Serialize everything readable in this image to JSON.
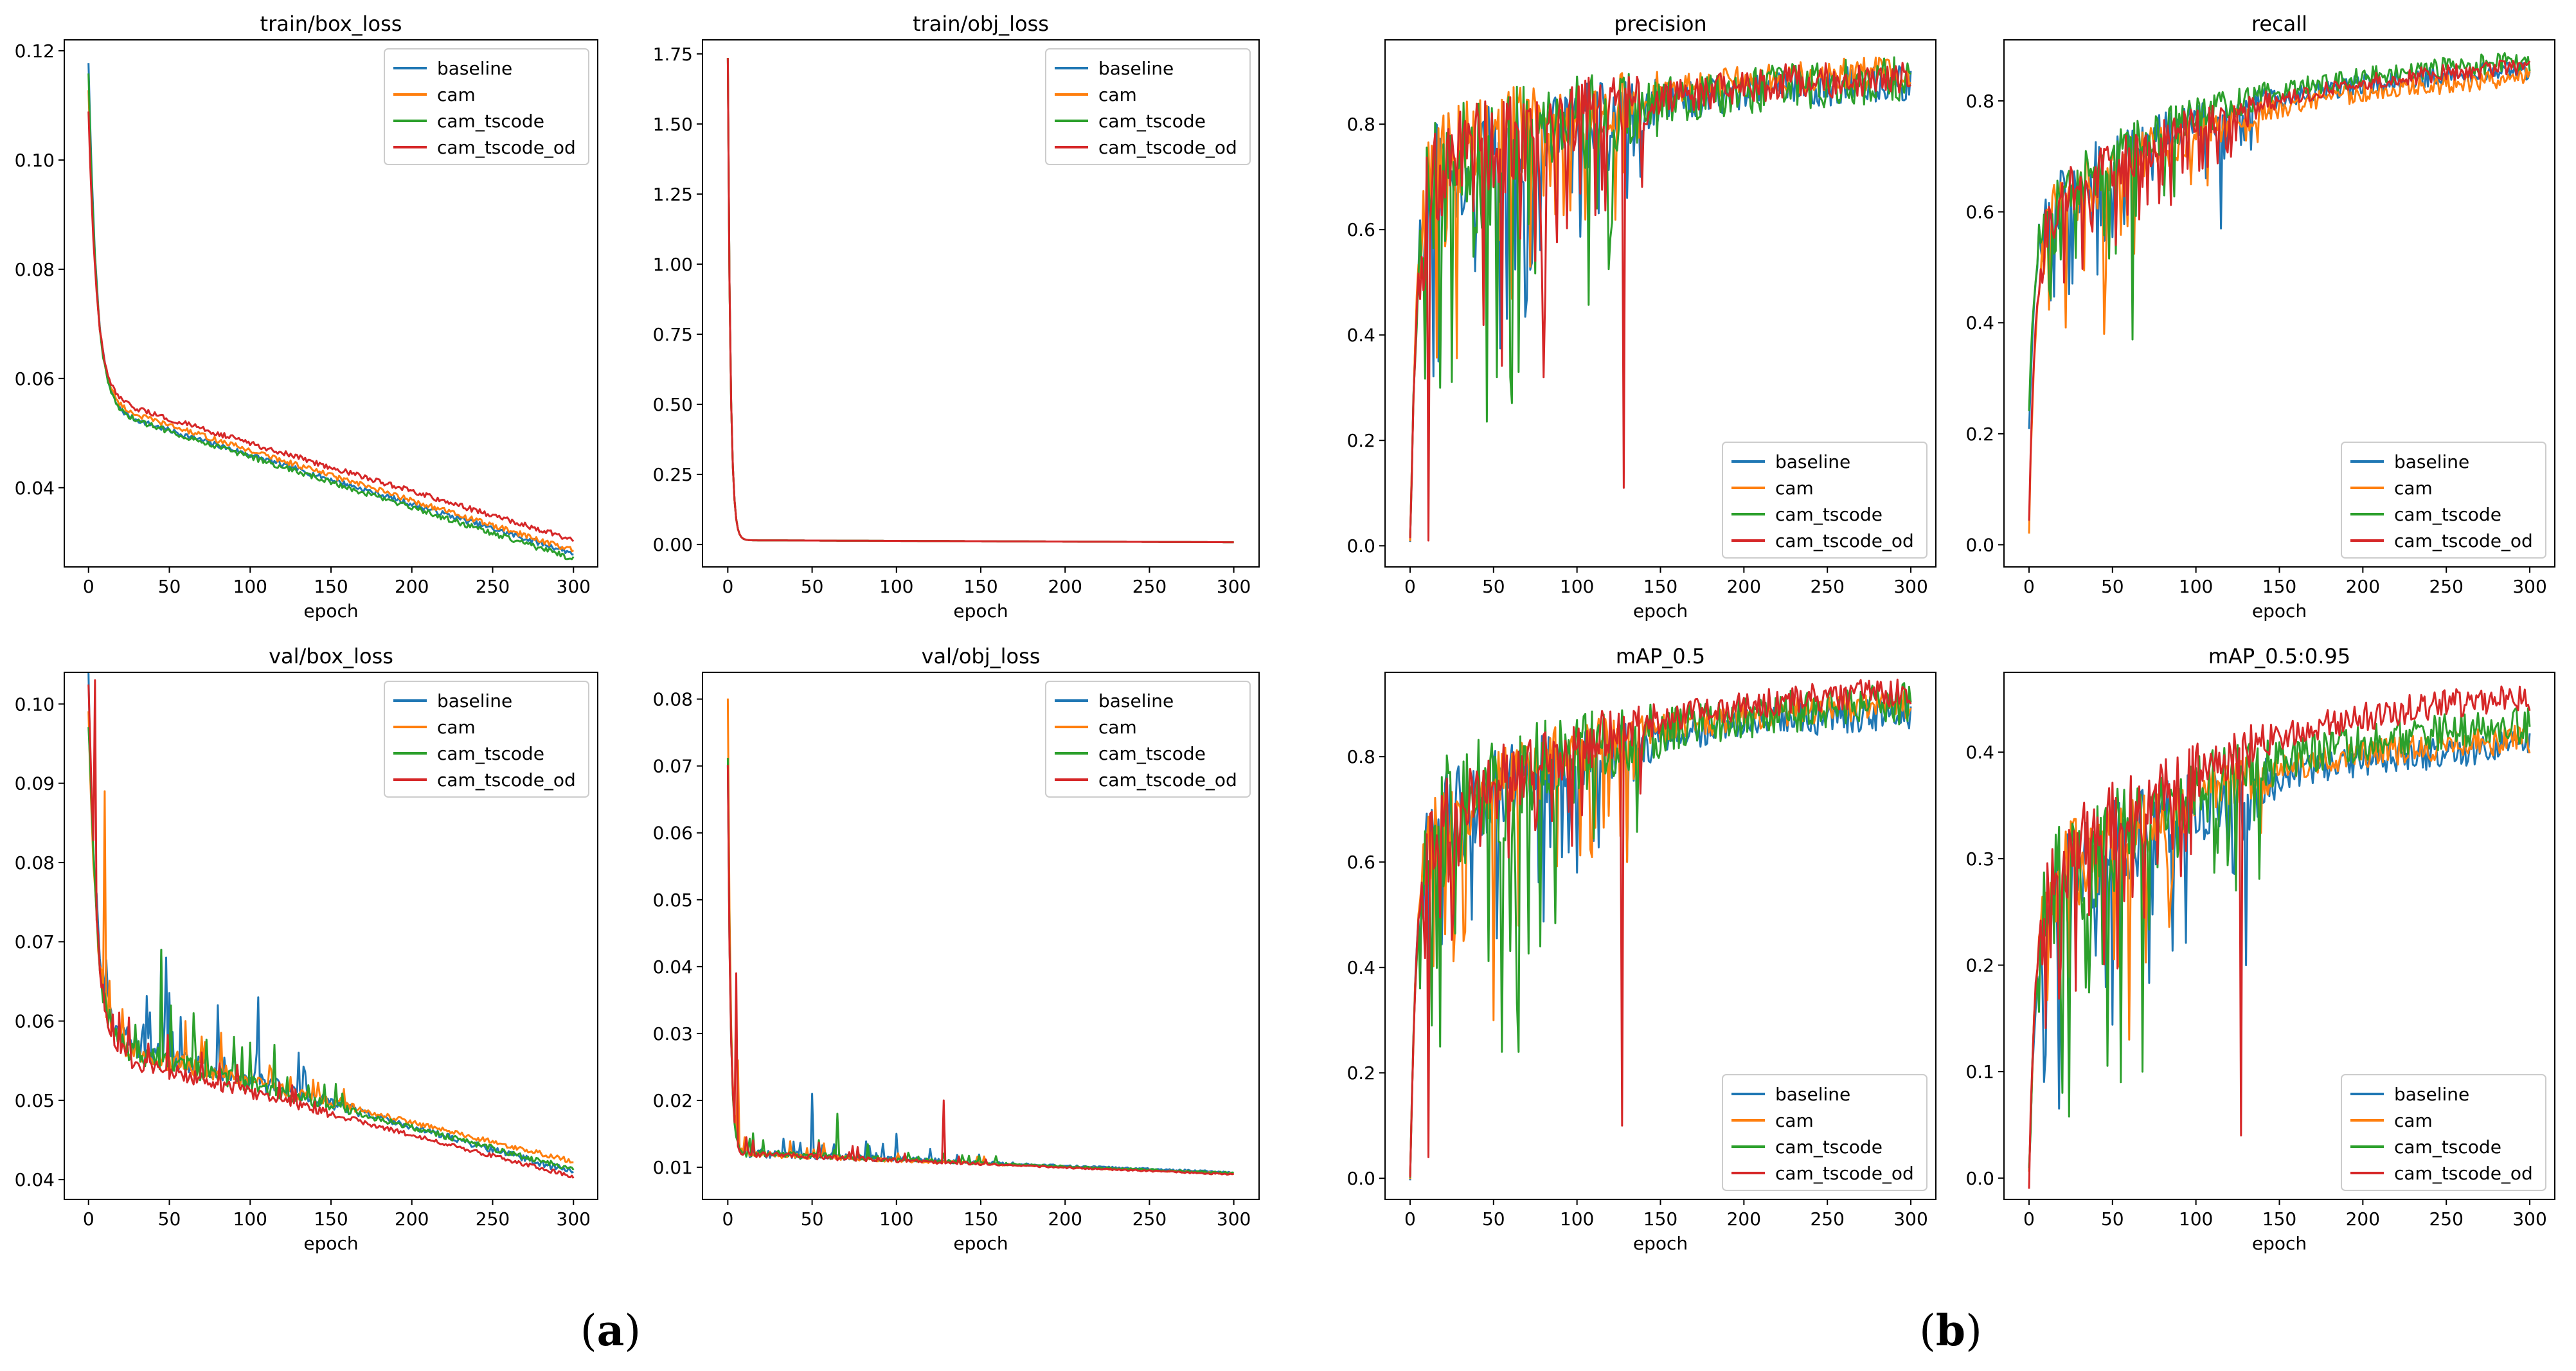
{
  "panel_labels": {
    "a": {
      "open": "(",
      "letter": "a",
      "close": ")"
    },
    "b": {
      "open": "(",
      "letter": "b",
      "close": ")"
    }
  },
  "colors": {
    "baseline": "#1f77b4",
    "cam": "#ff7f0e",
    "cam_tscode": "#2ca02c",
    "cam_tscode_od": "#d62728"
  },
  "chart_data": [
    {
      "id": "train-box-loss",
      "panel": "a",
      "type": "line",
      "title": "train/box_loss",
      "xlabel": "epoch",
      "ylabel": "",
      "xlim": [
        -15,
        315
      ],
      "ylim": [
        0.0255,
        0.122
      ],
      "xticks": [
        0,
        50,
        100,
        150,
        200,
        250,
        300
      ],
      "xtick_labels": [
        "0",
        "50",
        "100",
        "150",
        "200",
        "250",
        "300"
      ],
      "yticks": [
        0.04,
        0.06,
        0.08,
        0.1,
        0.12
      ],
      "ytick_labels": [
        "0.04",
        "0.06",
        "0.08",
        "0.10",
        "0.12"
      ],
      "legend": "top-right",
      "style": "decay",
      "series": [
        {
          "name": "baseline",
          "key": "baseline",
          "start": 0.118,
          "plateau": 0.055,
          "end": 0.028,
          "noise": 0.0005
        },
        {
          "name": "cam",
          "key": "cam",
          "start": 0.113,
          "plateau": 0.056,
          "end": 0.0285,
          "noise": 0.0005
        },
        {
          "name": "cam_tscode",
          "key": "cam_tscode",
          "start": 0.116,
          "plateau": 0.055,
          "end": 0.027,
          "noise": 0.0005
        },
        {
          "name": "cam_tscode_od",
          "key": "cam_tscode_od",
          "start": 0.109,
          "plateau": 0.057,
          "end": 0.0305,
          "noise": 0.0005
        }
      ]
    },
    {
      "id": "train-obj-loss",
      "panel": "a",
      "type": "line",
      "title": "train/obj_loss",
      "xlabel": "epoch",
      "ylabel": "",
      "xlim": [
        -15,
        315
      ],
      "ylim": [
        -0.08,
        1.8
      ],
      "xticks": [
        0,
        50,
        100,
        150,
        200,
        250,
        300
      ],
      "xtick_labels": [
        "0",
        "50",
        "100",
        "150",
        "200",
        "250",
        "300"
      ],
      "yticks": [
        0.0,
        0.25,
        0.5,
        0.75,
        1.0,
        1.25,
        1.5,
        1.75
      ],
      "ytick_labels": [
        "0.00",
        "0.25",
        "0.50",
        "0.75",
        "1.00",
        "1.25",
        "1.50",
        "1.75"
      ],
      "legend": "top-right",
      "style": "spike",
      "series": [
        {
          "name": "baseline",
          "key": "baseline",
          "start": 1.74,
          "plateau": 0.02,
          "end": 0.008,
          "noise": 0
        },
        {
          "name": "cam",
          "key": "cam",
          "start": 1.74,
          "plateau": 0.02,
          "end": 0.008,
          "noise": 0
        },
        {
          "name": "cam_tscode",
          "key": "cam_tscode",
          "start": 1.74,
          "plateau": 0.02,
          "end": 0.008,
          "noise": 0
        },
        {
          "name": "cam_tscode_od",
          "key": "cam_tscode_od",
          "start": 1.74,
          "plateau": 0.02,
          "end": 0.008,
          "noise": 0
        }
      ]
    },
    {
      "id": "val-box-loss",
      "panel": "a",
      "type": "line",
      "title": "val/box_loss",
      "xlabel": "epoch",
      "ylabel": "",
      "xlim": [
        -15,
        315
      ],
      "ylim": [
        0.0375,
        0.104
      ],
      "xticks": [
        0,
        50,
        100,
        150,
        200,
        250,
        300
      ],
      "xtick_labels": [
        "0",
        "50",
        "100",
        "150",
        "200",
        "250",
        "300"
      ],
      "yticks": [
        0.04,
        0.05,
        0.06,
        0.07,
        0.08,
        0.09,
        0.1
      ],
      "ytick_labels": [
        "0.04",
        "0.05",
        "0.06",
        "0.07",
        "0.08",
        "0.09",
        "0.10"
      ],
      "legend": "top-right",
      "style": "noisy-decay",
      "series": [
        {
          "name": "baseline",
          "key": "baseline",
          "start": 0.102,
          "plateau": 0.058,
          "end": 0.0408,
          "noise": 0.0035,
          "spikes": [
            [
              45,
              0.069
            ],
            [
              48,
              0.068
            ],
            [
              80,
              0.062
            ],
            [
              105,
              0.063
            ],
            [
              130,
              0.056
            ]
          ]
        },
        {
          "name": "cam",
          "key": "cam",
          "start": 0.1,
          "plateau": 0.057,
          "end": 0.0422,
          "noise": 0.0025,
          "spikes": [
            [
              10,
              0.089
            ],
            [
              60,
              0.06
            ],
            [
              95,
              0.055
            ]
          ]
        },
        {
          "name": "cam_tscode",
          "key": "cam_tscode",
          "start": 0.098,
          "plateau": 0.057,
          "end": 0.0412,
          "noise": 0.003,
          "spikes": [
            [
              45,
              0.069
            ],
            [
              65,
              0.061
            ],
            [
              90,
              0.058
            ],
            [
              115,
              0.057
            ]
          ]
        },
        {
          "name": "cam_tscode_od",
          "key": "cam_tscode_od",
          "start": 0.103,
          "plateau": 0.056,
          "end": 0.0403,
          "noise": 0.0022,
          "spikes": [
            [
              4,
              0.103
            ]
          ]
        }
      ]
    },
    {
      "id": "val-obj-loss",
      "panel": "a",
      "type": "line",
      "title": "val/obj_loss",
      "xlabel": "epoch",
      "ylabel": "",
      "xlim": [
        -15,
        315
      ],
      "ylim": [
        0.0052,
        0.084
      ],
      "xticks": [
        0,
        50,
        100,
        150,
        200,
        250,
        300
      ],
      "xtick_labels": [
        "0",
        "50",
        "100",
        "150",
        "200",
        "250",
        "300"
      ],
      "yticks": [
        0.01,
        0.02,
        0.03,
        0.04,
        0.05,
        0.06,
        0.07,
        0.08
      ],
      "ytick_labels": [
        "0.01",
        "0.02",
        "0.03",
        "0.04",
        "0.05",
        "0.06",
        "0.07",
        "0.08"
      ],
      "legend": "top-right",
      "style": "noisy-spike",
      "series": [
        {
          "name": "baseline",
          "key": "baseline",
          "start": 0.072,
          "plateau": 0.014,
          "end": 0.0092,
          "noise": 0.0012,
          "spikes": [
            [
              50,
              0.021
            ],
            [
              100,
              0.015
            ]
          ]
        },
        {
          "name": "cam",
          "key": "cam",
          "start": 0.082,
          "plateau": 0.014,
          "end": 0.009,
          "noise": 0.0009,
          "spikes": [
            [
              6,
              0.026
            ]
          ]
        },
        {
          "name": "cam_tscode",
          "key": "cam_tscode",
          "start": 0.073,
          "plateau": 0.014,
          "end": 0.0091,
          "noise": 0.0011,
          "spikes": [
            [
              65,
              0.018
            ]
          ]
        },
        {
          "name": "cam_tscode_od",
          "key": "cam_tscode_od",
          "start": 0.072,
          "plateau": 0.014,
          "end": 0.0089,
          "noise": 0.0009,
          "spikes": [
            [
              5,
              0.039
            ],
            [
              128,
              0.02
            ]
          ]
        }
      ]
    },
    {
      "id": "precision",
      "panel": "b",
      "type": "line",
      "title": "precision",
      "xlabel": "epoch",
      "ylabel": "",
      "xlim": [
        -15,
        315
      ],
      "ylim": [
        -0.04,
        0.96
      ],
      "xticks": [
        0,
        50,
        100,
        150,
        200,
        250,
        300
      ],
      "xtick_labels": [
        "0",
        "50",
        "100",
        "150",
        "200",
        "250",
        "300"
      ],
      "yticks": [
        0.0,
        0.2,
        0.4,
        0.6,
        0.8
      ],
      "ytick_labels": [
        "0.0",
        "0.2",
        "0.4",
        "0.6",
        "0.8"
      ],
      "legend": "bottom-right",
      "style": "rise",
      "series": [
        {
          "name": "baseline",
          "key": "baseline",
          "start": 0.0,
          "plateau": 0.7,
          "end": 0.885,
          "noise": 0.08,
          "spikes": [
            [
              130,
              0.66
            ]
          ]
        },
        {
          "name": "cam",
          "key": "cam",
          "start": 0.0,
          "plateau": 0.72,
          "end": 0.905,
          "noise": 0.07
        },
        {
          "name": "cam_tscode",
          "key": "cam_tscode",
          "start": 0.0,
          "plateau": 0.68,
          "end": 0.895,
          "noise": 0.1,
          "spikes": [
            [
              18,
              0.3
            ],
            [
              52,
              0.32
            ],
            [
              60,
              0.32
            ],
            [
              65,
              0.33
            ]
          ]
        },
        {
          "name": "cam_tscode_od",
          "key": "cam_tscode_od",
          "start": 0.0,
          "plateau": 0.7,
          "end": 0.9,
          "noise": 0.08,
          "spikes": [
            [
              11,
              0.01
            ],
            [
              80,
              0.32
            ],
            [
              128,
              0.11
            ]
          ]
        }
      ]
    },
    {
      "id": "recall",
      "panel": "b",
      "type": "line",
      "title": "recall",
      "xlabel": "epoch",
      "ylabel": "",
      "xlim": [
        -15,
        315
      ],
      "ylim": [
        -0.04,
        0.91
      ],
      "xticks": [
        0,
        50,
        100,
        150,
        200,
        250,
        300
      ],
      "xtick_labels": [
        "0",
        "50",
        "100",
        "150",
        "200",
        "250",
        "300"
      ],
      "yticks": [
        0.0,
        0.2,
        0.4,
        0.6,
        0.8
      ],
      "ytick_labels": [
        "0.0",
        "0.2",
        "0.4",
        "0.6",
        "0.8"
      ],
      "legend": "bottom-right",
      "style": "rise",
      "series": [
        {
          "name": "baseline",
          "key": "baseline",
          "start": 0.22,
          "plateau": 0.6,
          "end": 0.86,
          "noise": 0.04,
          "spikes": [
            [
              115,
              0.57
            ]
          ]
        },
        {
          "name": "cam",
          "key": "cam",
          "start": 0.03,
          "plateau": 0.58,
          "end": 0.845,
          "noise": 0.04,
          "spikes": [
            [
              45,
              0.38
            ]
          ]
        },
        {
          "name": "cam_tscode",
          "key": "cam_tscode",
          "start": 0.25,
          "plateau": 0.6,
          "end": 0.875,
          "noise": 0.04,
          "spikes": [
            [
              62,
              0.37
            ]
          ]
        },
        {
          "name": "cam_tscode_od",
          "key": "cam_tscode_od",
          "start": 0.05,
          "plateau": 0.58,
          "end": 0.865,
          "noise": 0.035
        }
      ]
    },
    {
      "id": "map-05",
      "panel": "b",
      "type": "line",
      "title": "mAP_0.5",
      "xlabel": "epoch",
      "ylabel": "",
      "xlim": [
        -15,
        315
      ],
      "ylim": [
        -0.04,
        0.96
      ],
      "xticks": [
        0,
        50,
        100,
        150,
        200,
        250,
        300
      ],
      "xtick_labels": [
        "0",
        "50",
        "100",
        "150",
        "200",
        "250",
        "300"
      ],
      "yticks": [
        0.0,
        0.2,
        0.4,
        0.6,
        0.8
      ],
      "ytick_labels": [
        "0.0",
        "0.2",
        "0.4",
        "0.6",
        "0.8"
      ],
      "legend": "bottom-right",
      "style": "rise",
      "series": [
        {
          "name": "baseline",
          "key": "baseline",
          "start": 0.0,
          "plateau": 0.66,
          "end": 0.89,
          "noise": 0.07,
          "spikes": [
            [
              100,
              0.58
            ],
            [
              110,
              0.64
            ]
          ]
        },
        {
          "name": "cam",
          "key": "cam",
          "start": 0.0,
          "plateau": 0.67,
          "end": 0.905,
          "noise": 0.06,
          "spikes": [
            [
              50,
              0.3
            ],
            [
              130,
              0.6
            ]
          ]
        },
        {
          "name": "cam_tscode",
          "key": "cam_tscode",
          "start": 0.0,
          "plateau": 0.65,
          "end": 0.91,
          "noise": 0.09,
          "spikes": [
            [
              18,
              0.25
            ],
            [
              55,
              0.24
            ],
            [
              65,
              0.24
            ],
            [
              78,
              0.44
            ]
          ]
        },
        {
          "name": "cam_tscode_od",
          "key": "cam_tscode_od",
          "start": 0.0,
          "plateau": 0.66,
          "end": 0.93,
          "noise": 0.06,
          "spikes": [
            [
              11,
              0.04
            ],
            [
              127,
              0.1
            ]
          ]
        }
      ]
    },
    {
      "id": "map-05-095",
      "panel": "b",
      "type": "line",
      "title": "mAP_0.5:0.95",
      "xlabel": "epoch",
      "ylabel": "",
      "xlim": [
        -15,
        315
      ],
      "ylim": [
        -0.02,
        0.475
      ],
      "xticks": [
        0,
        50,
        100,
        150,
        200,
        250,
        300
      ],
      "xtick_labels": [
        "0",
        "50",
        "100",
        "150",
        "200",
        "250",
        "300"
      ],
      "yticks": [
        0.0,
        0.1,
        0.2,
        0.3,
        0.4
      ],
      "ytick_labels": [
        "0.0",
        "0.1",
        "0.2",
        "0.3",
        "0.4"
      ],
      "legend": "bottom-right",
      "style": "rise",
      "series": [
        {
          "name": "baseline",
          "key": "baseline",
          "start": 0.0,
          "plateau": 0.26,
          "end": 0.41,
          "noise": 0.035,
          "spikes": [
            [
              130,
              0.2
            ]
          ]
        },
        {
          "name": "cam",
          "key": "cam",
          "start": 0.0,
          "plateau": 0.27,
          "end": 0.415,
          "noise": 0.03,
          "spikes": [
            [
              60,
              0.13
            ]
          ]
        },
        {
          "name": "cam_tscode",
          "key": "cam_tscode",
          "start": 0.0,
          "plateau": 0.26,
          "end": 0.43,
          "noise": 0.04,
          "spikes": [
            [
              20,
              0.08
            ],
            [
              55,
              0.09
            ],
            [
              68,
              0.1
            ]
          ]
        },
        {
          "name": "cam_tscode_od",
          "key": "cam_tscode_od",
          "start": 0.0,
          "plateau": 0.27,
          "end": 0.455,
          "noise": 0.03,
          "spikes": [
            [
              127,
              0.04
            ]
          ]
        }
      ]
    }
  ]
}
